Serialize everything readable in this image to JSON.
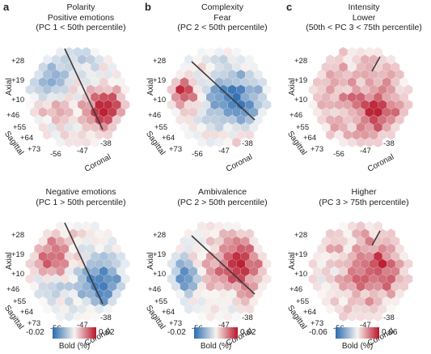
{
  "panels": [
    {
      "id": "a",
      "title_lines": [
        "Polarity",
        "Positive emotions",
        "(PC 1 < 50th percentile)"
      ],
      "column": 0,
      "row": 0,
      "pattern": "pos",
      "line": true
    },
    {
      "id": "b",
      "title_lines": [
        "Complexity",
        "Fear",
        "(PC 2 < 50th percentile)"
      ],
      "column": 1,
      "row": 0,
      "pattern": "fear",
      "line": true
    },
    {
      "id": "c",
      "title_lines": [
        "Intensity",
        "Lower",
        "(50th < PC 3 < 75th percentile)"
      ],
      "column": 2,
      "row": 0,
      "pattern": "low",
      "line": true
    },
    {
      "id": "",
      "title_lines": [
        "Negative emotions",
        "(PC 1 > 50th percentile)"
      ],
      "column": 0,
      "row": 1,
      "pattern": "neg",
      "line": true
    },
    {
      "id": "",
      "title_lines": [
        "Ambivalence",
        "(PC 2 > 50th percentile)"
      ],
      "column": 1,
      "row": 1,
      "pattern": "amb",
      "line": true
    },
    {
      "id": "",
      "title_lines": [
        "Higher",
        "(PC 3 > 75th percentile)"
      ],
      "column": 2,
      "row": 1,
      "pattern": "high",
      "line": true
    }
  ],
  "axes": {
    "axial_label": "Axial",
    "axial_ticks": [
      "+28",
      "+19",
      "+10"
    ],
    "sagittal_label": "Sagittal",
    "sagittal_ticks": [
      "+46",
      "+55",
      "+64",
      "+73"
    ],
    "coronal_label": "Coronal",
    "coronal_ticks": [
      "-56",
      "-47",
      "-38"
    ]
  },
  "colorbars": [
    {
      "column": 0,
      "min": "-0.02",
      "max": "0.02",
      "title": "Bold (%)"
    },
    {
      "column": 1,
      "min": "-0.02",
      "max": "0.02",
      "title": "Bold (%)"
    },
    {
      "column": 2,
      "min": "-0.06",
      "max": "0.06",
      "title": "Bold (%)"
    }
  ],
  "colors": {
    "negative": "#2b6bb0",
    "neutral": "#f7f4f1",
    "positive": "#b8152a",
    "line": "#3a3a3a"
  }
}
